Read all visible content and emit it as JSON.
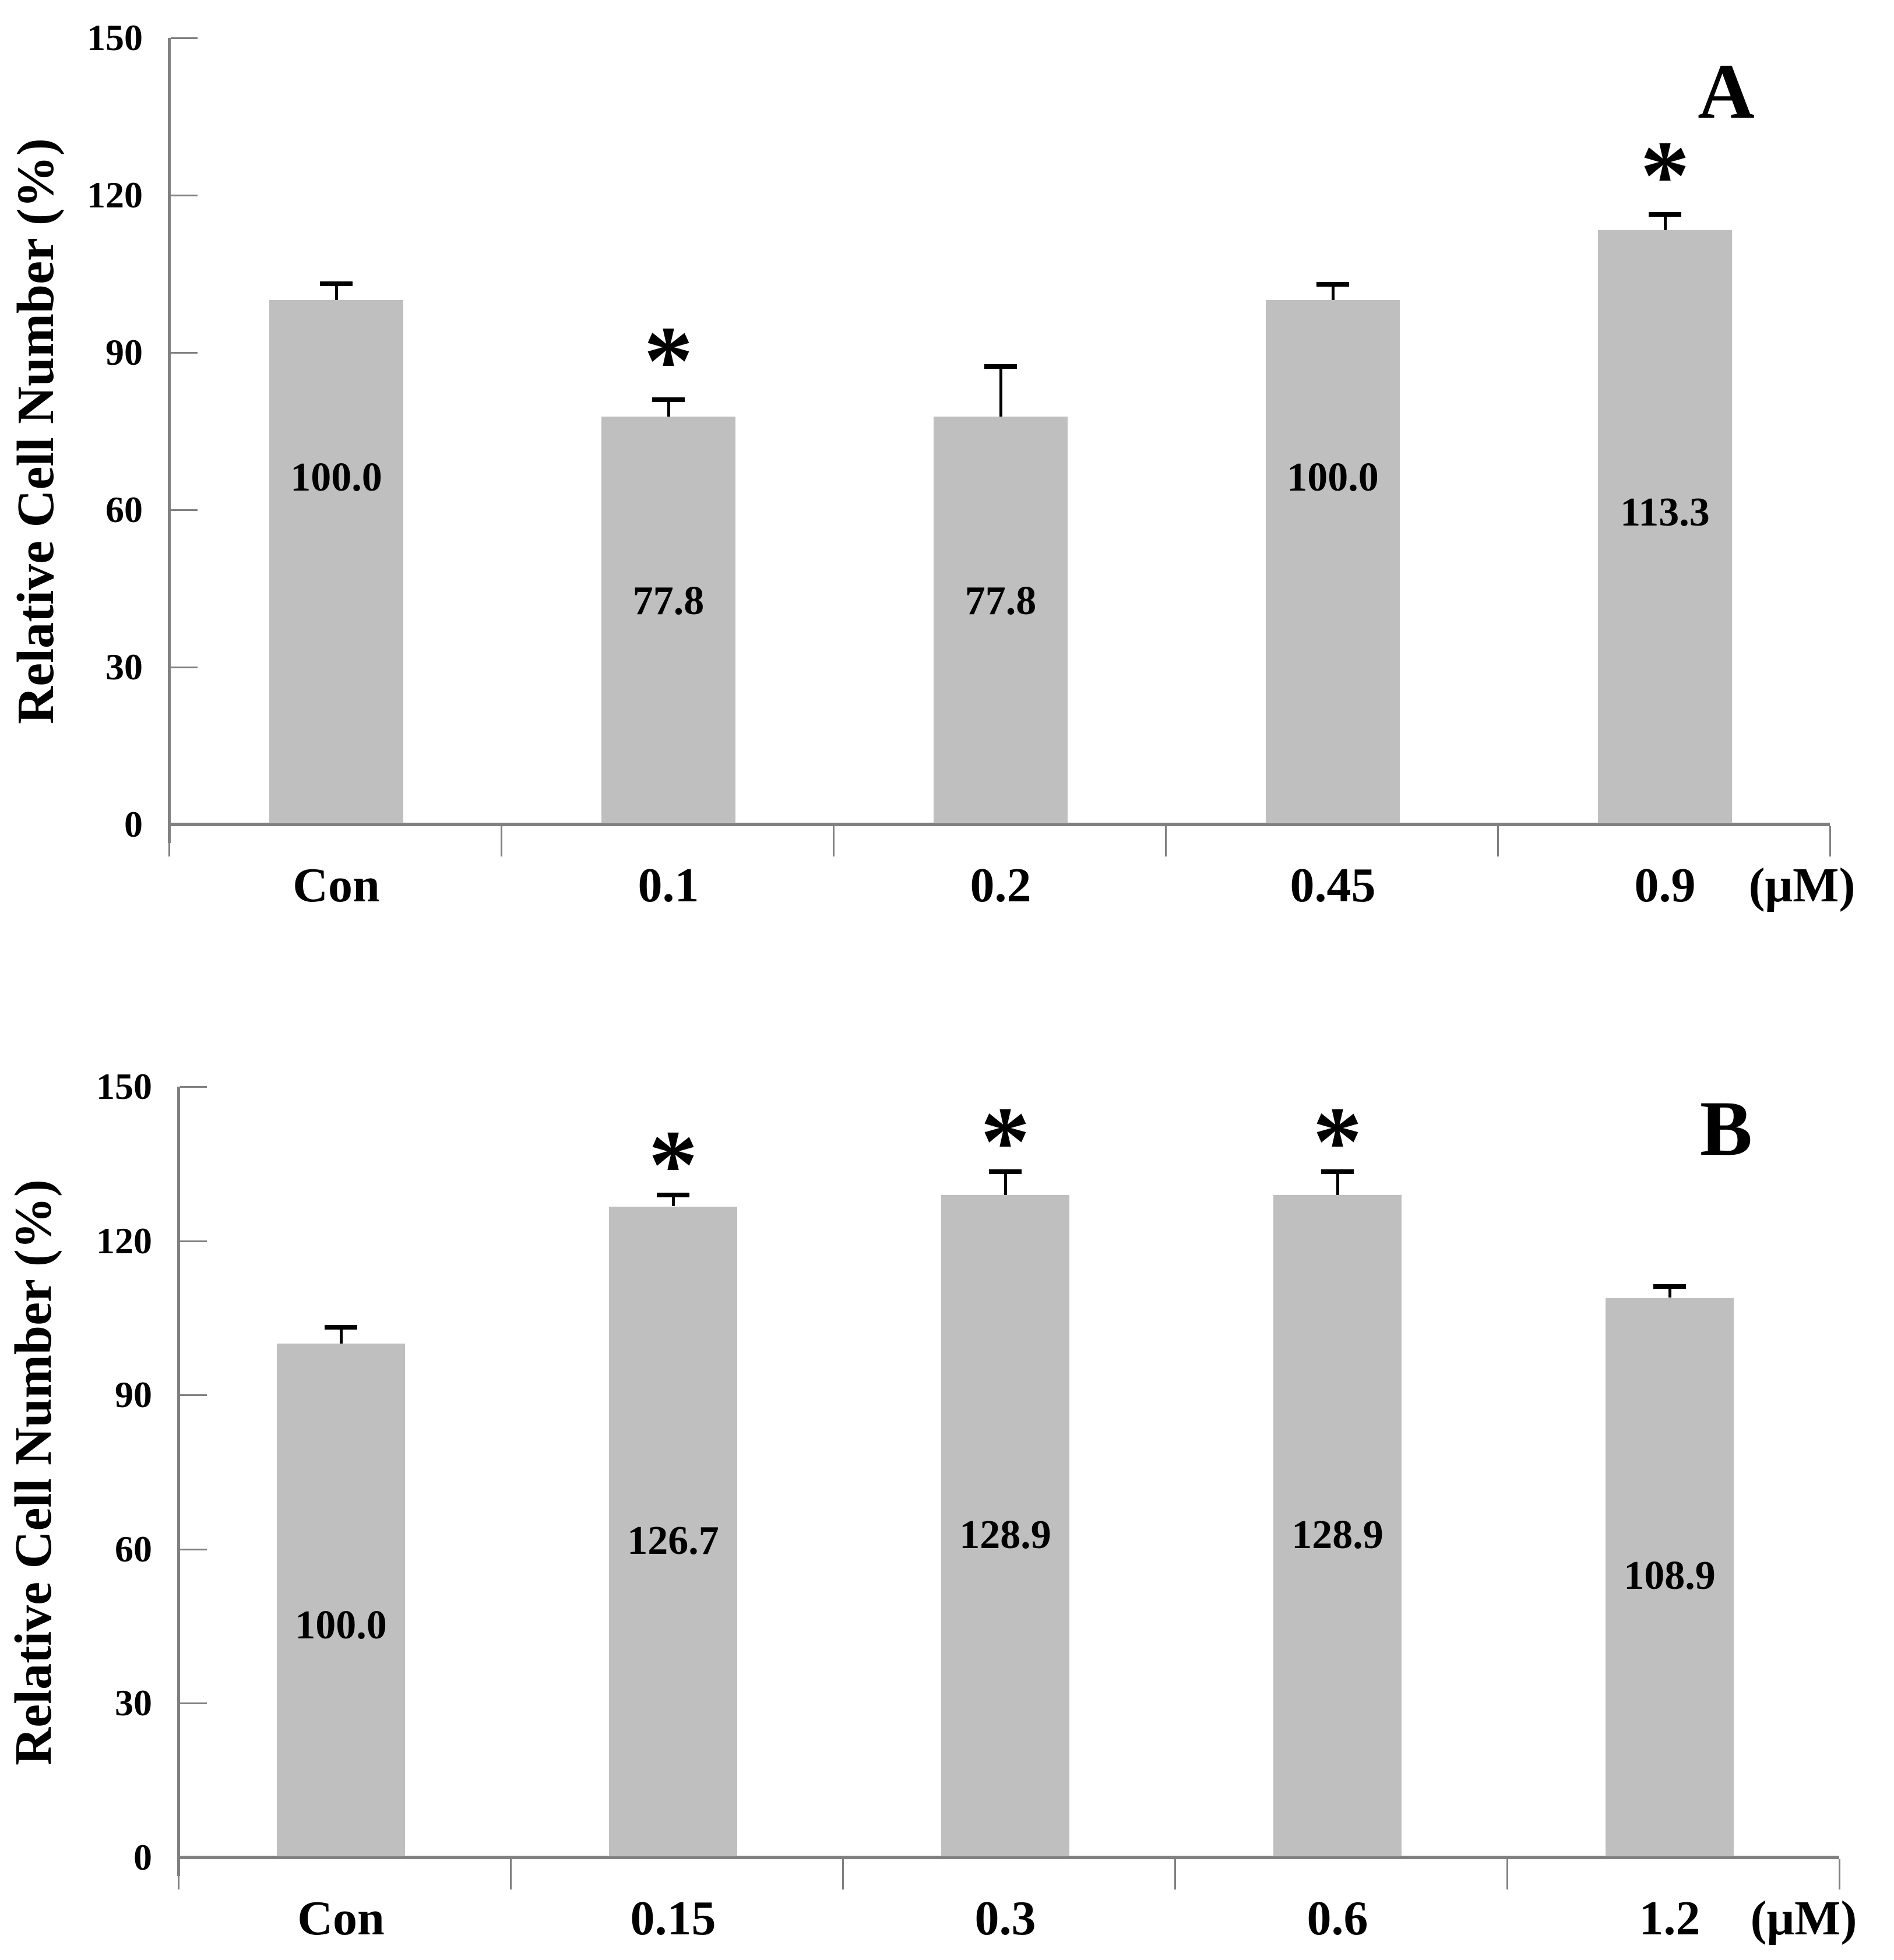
{
  "figure_title": "",
  "chart_data": [
    {
      "type": "bar",
      "panel": "A",
      "ylabel": "Relative Cell Number (%)",
      "x_unit_label": "(μM)",
      "categories": [
        "Con",
        "0.1",
        "0.2",
        "0.45",
        "0.9"
      ],
      "values": [
        100.0,
        77.8,
        77.8,
        100.0,
        113.3
      ],
      "bar_labels": [
        "100.0",
        "77.8",
        "77.8",
        "100.0",
        "113.3"
      ],
      "errors_plus": [
        3.1,
        3.2,
        9.5,
        3.0,
        3.0
      ],
      "significance": [
        "",
        "*",
        "",
        "",
        "*"
      ],
      "ylim": [
        0,
        150
      ],
      "y_tick_values": [
        150,
        120,
        90,
        60,
        30,
        0
      ],
      "y_tick_labels": [
        "150",
        "120",
        "90",
        "60",
        "30",
        "0"
      ],
      "bar_color": "#bfbfbf",
      "axis_color": "#808080",
      "error_color": "#000000",
      "grid": false,
      "legend": null
    },
    {
      "type": "bar",
      "panel": "B",
      "ylabel": "Relative Cell Number (%)",
      "x_unit_label": "(μM)",
      "categories": [
        "Con",
        "0.15",
        "0.3",
        "0.6",
        "1.2"
      ],
      "values": [
        100.0,
        126.7,
        128.9,
        128.9,
        108.9
      ],
      "bar_labels": [
        "100.0",
        "126.7",
        "128.9",
        "128.9",
        "108.9"
      ],
      "errors_plus": [
        3.2,
        2.2,
        4.5,
        4.5,
        2.2
      ],
      "significance": [
        "",
        "*",
        "*",
        "*",
        ""
      ],
      "ylim": [
        0,
        150
      ],
      "y_tick_values": [
        150,
        120,
        90,
        60,
        30,
        0
      ],
      "y_tick_labels": [
        "150",
        "120",
        "90",
        "60",
        "30",
        "0"
      ],
      "bar_color": "#bfbfbf",
      "axis_color": "#808080",
      "error_color": "#000000",
      "grid": false,
      "legend": null
    }
  ]
}
